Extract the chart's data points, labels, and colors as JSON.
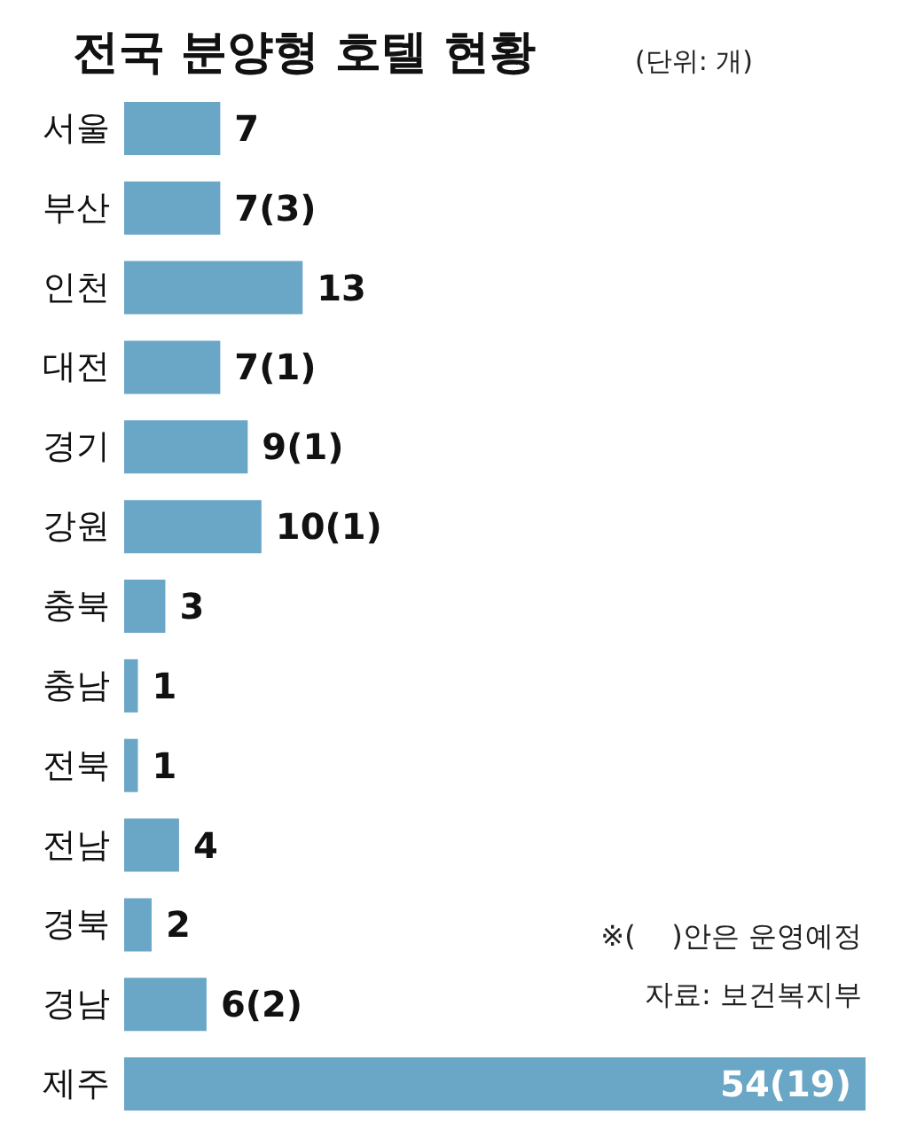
{
  "chart_data": {
    "type": "bar",
    "orientation": "horizontal",
    "title": "전국 분양형 호텔 현황",
    "subtitle": "(단위: 개)",
    "categories": [
      "서울",
      "부산",
      "인천",
      "대전",
      "경기",
      "강원",
      "충북",
      "충남",
      "전북",
      "전남",
      "경북",
      "경남",
      "제주"
    ],
    "values": [
      7,
      7,
      13,
      7,
      9,
      10,
      3,
      1,
      1,
      4,
      2,
      6,
      54
    ],
    "value_labels": [
      "7",
      "7(3)",
      "13",
      "7(1)",
      "9(1)",
      "10(1)",
      "3",
      "1",
      "1",
      "4",
      "2",
      "6(2)",
      "54(19)"
    ],
    "color": "#6aa6c6",
    "annotations": [
      "※(    )안은 운영예정",
      "자료: 보건복지부"
    ]
  }
}
